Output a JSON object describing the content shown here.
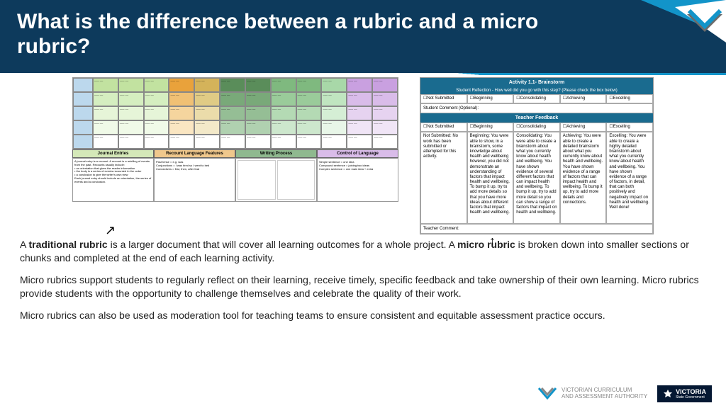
{
  "title": "What is the difference between a rubric and a micro rubric?",
  "para1_a": "A ",
  "para1_b": "traditional rubric",
  "para1_c": " is a larger document that will cover all learning outcomes for a whole project. A ",
  "para1_d": "micro rubric",
  "para1_e": " is broken down into smaller sections or chunks and completed at the end of each learning activity.",
  "para2": "Micro rubrics support students to regularly reflect on their learning, receive timely, specific feedback and take ownership of their own learning. Micro rubrics provide students with the opportunity to challenge themselves and celebrate the quality of their work.",
  "para3": "Micro rubrics can also be used as moderation tool for teaching teams to ensure consistent and equitable assessment practice occurs.",
  "big_sections": [
    "Journal Entries",
    "Recount Language Features",
    "Writing Process",
    "Control of Language"
  ],
  "big_colors": {
    "r1": [
      "#bcd8ed",
      "#c2e2a0",
      "#c2e2a0",
      "#c2e2a0",
      "#e9a23b",
      "#d4b35a",
      "#5a8d5a",
      "#5a8d5a",
      "#7fb97f",
      "#7fb97f",
      "#a8d8a8",
      "#c9a0e0",
      "#c9a0e0"
    ],
    "r2": [
      "#bcd8ed",
      "#d5eec0",
      "#d5eec0",
      "#d5eec0",
      "#f0c074",
      "#e0cb85",
      "#79a979",
      "#79a979",
      "#9acb9a",
      "#9acb9a",
      "#c0e5c0",
      "#d9bce9",
      "#d9bce9"
    ],
    "r3": [
      "#bcd8ed",
      "#e6f5d8",
      "#e6f5d8",
      "#e6f5d8",
      "#f5d59e",
      "#ebdcaa",
      "#95be95",
      "#95be95",
      "#b4dab4",
      "#b4dab4",
      "#d5eed5",
      "#e6d3f0",
      "#e6d3f0"
    ],
    "r4": [
      "#bcd8ed",
      "#f0fae8",
      "#f0fae8",
      "#f0fae8",
      "#fae6c2",
      "#f3e9c9",
      "#b0d1b0",
      "#b0d1b0",
      "#cde7cd",
      "#cde7cd",
      "#e8f6e8",
      "#f0e5f6",
      "#f0e5f6"
    ],
    "r5": [
      "#bcd8ed",
      "#ffffff",
      "#ffffff",
      "#ffffff",
      "#ffffff",
      "#ffffff",
      "#ffffff",
      "#ffffff",
      "#ffffff",
      "#ffffff",
      "#ffffff",
      "#ffffff",
      "#ffffff"
    ]
  },
  "big_sec_colors": [
    "#d4e8b8",
    "#f0c88c",
    "#8fb98f",
    "#d9bce9"
  ],
  "micro": {
    "activity": "Activity 1.1- Brainstorm",
    "reflection": "Student Reflection - How well did you go with this step? (Please check the box below)",
    "levels": [
      "☐Not Submitted",
      "☐Beginning",
      "☐Consolidating",
      "☐Achieving",
      "☐Excelling"
    ],
    "comment1": "Student Comment (Optional):",
    "feedback": "Teacher Feedback",
    "desc": [
      "Not Submitted: No work has been submitted or attempted for this activity.",
      "Beginning: You were able to show, in a brainstorm, some knowledge about health and wellbeing however, you did not demonstrate an understanding of factors that impact health and wellbeing. To bump it up, try to add more details so that you have more ideas about different factors that impact health and wellbeing.",
      "Consolidating: You were able to create a brainstorm about what you currently know about health and wellbeing. You have shown evidence of several different factors that can impact health and wellbeing. To bump it up, try to add more detail so you can show a range of factors that impact on health and wellbeing.",
      "Achieving: You were able to create a detailed brainstorm about what you currently know about health and wellbeing. You have shown evidence of a range of factors that can impact health and wellbeing. To bump it up, try to add more details and connections.",
      "Excelling: You were able to create a highly detailed brainstorm about what you currently know about health and wellbeing. You have shown evidence of a range of factors, in detail, that can both positively and negatively impact on health and wellbeing. Well done!"
    ],
    "comment2": "Teacher Comment:"
  },
  "footer": {
    "vcaa1": "VICTORIAN CURRICULUM",
    "vcaa2": "AND ASSESSMENT AUTHORITY",
    "vic": "VICTORIA",
    "vic2": "State Government"
  },
  "colors": {
    "header": "#0d3a5c",
    "stripe": "#1294c9",
    "teal": "#1a6b8f"
  }
}
